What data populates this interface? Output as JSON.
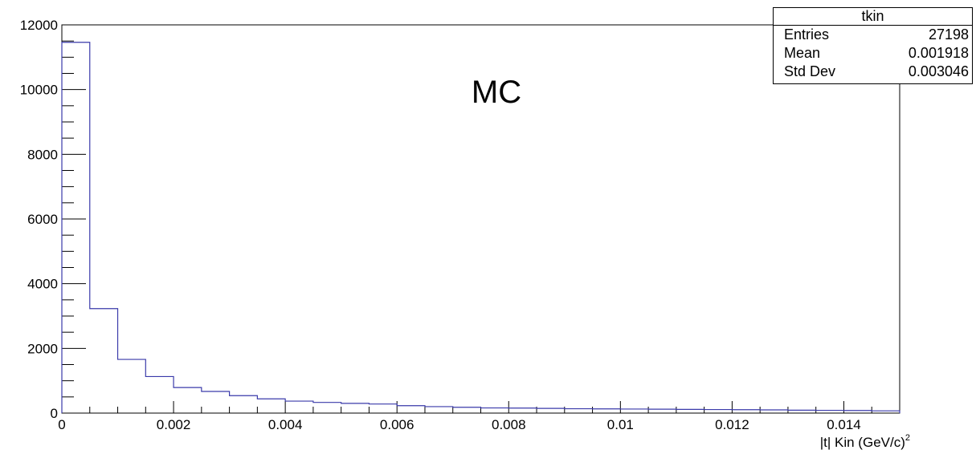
{
  "chart_data": {
    "type": "bar",
    "title": "MC",
    "xlabel": "|t| Kin (GeV/c)",
    "xlabel_sup": "2",
    "ylabel": "",
    "xlim": [
      0,
      0.015
    ],
    "ylim": [
      0,
      12000
    ],
    "bin_width": 0.0005,
    "x_ticks": [
      0,
      0.002,
      0.004,
      0.006,
      0.008,
      0.01,
      0.012,
      0.014
    ],
    "x_tick_labels": [
      "0",
      "0.002",
      "0.004",
      "0.006",
      "0.008",
      "0.01",
      "0.012",
      "0.014"
    ],
    "y_ticks": [
      0,
      2000,
      4000,
      6000,
      8000,
      10000,
      12000
    ],
    "y_tick_labels": [
      "0",
      "2000",
      "4000",
      "6000",
      "8000",
      "10000",
      "12000"
    ],
    "values": [
      11460,
      3230,
      1660,
      1130,
      790,
      670,
      540,
      440,
      370,
      330,
      300,
      280,
      230,
      200,
      180,
      160,
      155,
      145,
      135,
      130,
      125,
      120,
      115,
      110,
      105,
      100,
      90,
      85,
      80,
      70
    ],
    "grid": false,
    "legend": "none",
    "line_color": "#3a3aaa",
    "stats": {
      "name": "tkin",
      "rows": [
        {
          "label": "Entries",
          "value": "27198"
        },
        {
          "label": "Mean",
          "value": "0.001918"
        },
        {
          "label": "Std Dev",
          "value": "0.003046"
        }
      ]
    }
  }
}
